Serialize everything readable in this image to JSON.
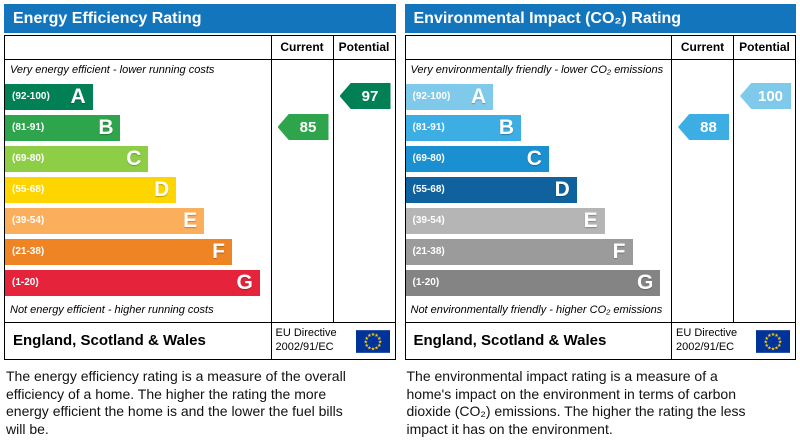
{
  "panels": [
    {
      "title": "Energy Efficiency Rating",
      "header_color": "#1375bc",
      "columns": {
        "current": "Current",
        "potential": "Potential"
      },
      "top_note": "Very energy efficient - lower running costs",
      "bottom_note": "Not energy efficient - higher running costs",
      "bands": [
        {
          "range": "(92-100)",
          "letter": "A",
          "color": "#008054"
        },
        {
          "range": "(81-91)",
          "letter": "B",
          "color": "#2ea44d"
        },
        {
          "range": "(69-80)",
          "letter": "C",
          "color": "#8dce46"
        },
        {
          "range": "(55-68)",
          "letter": "D",
          "color": "#ffd500"
        },
        {
          "range": "(39-54)",
          "letter": "E",
          "color": "#fbaf5d"
        },
        {
          "range": "(21-38)",
          "letter": "F",
          "color": "#ee8424"
        },
        {
          "range": "(1-20)",
          "letter": "G",
          "color": "#e5233b"
        }
      ],
      "current": {
        "value": "85",
        "band_index": 1,
        "color": "#2ea44d"
      },
      "potential": {
        "value": "97",
        "band_index": 0,
        "color": "#008054"
      },
      "footer": {
        "region": "England, Scotland & Wales",
        "directive_line1": "EU Directive",
        "directive_line2": "2002/91/EC"
      },
      "description": "The energy efficiency rating is a measure of the overall efficiency of a home. The higher the rating the more energy efficient the home is and the lower the fuel bills will be."
    },
    {
      "title": "Environmental Impact (CO₂) Rating",
      "header_color": "#1375bc",
      "columns": {
        "current": "Current",
        "potential": "Potential"
      },
      "top_note": "Very environmentally friendly - lower CO₂ emissions",
      "bottom_note": "Not environmentally friendly - higher CO₂ emissions",
      "bands": [
        {
          "range": "(92-100)",
          "letter": "A",
          "color": "#7fc9ea"
        },
        {
          "range": "(81-91)",
          "letter": "B",
          "color": "#3caee4"
        },
        {
          "range": "(69-80)",
          "letter": "C",
          "color": "#1a90d0"
        },
        {
          "range": "(55-68)",
          "letter": "D",
          "color": "#10629f"
        },
        {
          "range": "(39-54)",
          "letter": "E",
          "color": "#b5b5b5"
        },
        {
          "range": "(21-38)",
          "letter": "F",
          "color": "#9b9b9b"
        },
        {
          "range": "(1-20)",
          "letter": "G",
          "color": "#848484"
        }
      ],
      "current": {
        "value": "88",
        "band_index": 1,
        "color": "#3caee4"
      },
      "potential": {
        "value": "100",
        "band_index": 0,
        "color": "#7fc9ea"
      },
      "footer": {
        "region": "England, Scotland & Wales",
        "directive_line1": "EU Directive",
        "directive_line2": "2002/91/EC"
      },
      "description": "The environmental impact rating is a measure of a home's impact on the environment in terms of carbon dioxide (CO₂) emissions. The higher the rating the less impact it has on the environment."
    }
  ],
  "flag_colors": {
    "background": "#003399",
    "stars": "#ffcc00"
  },
  "chart_data": [
    {
      "type": "bar",
      "title": "Energy Efficiency Rating",
      "categories": [
        "A (92-100)",
        "B (81-91)",
        "C (69-80)",
        "D (55-68)",
        "E (39-54)",
        "F (21-38)",
        "G (1-20)"
      ],
      "series": [
        {
          "name": "Current",
          "value": 85,
          "band": "B"
        },
        {
          "name": "Potential",
          "value": 97,
          "band": "A"
        }
      ],
      "xlabel": "",
      "ylabel": "",
      "ylim": [
        1,
        100
      ],
      "annotations": [
        "Very energy efficient - lower running costs",
        "Not energy efficient - higher running costs",
        "England, Scotland & Wales",
        "EU Directive 2002/91/EC"
      ]
    },
    {
      "type": "bar",
      "title": "Environmental Impact (CO₂) Rating",
      "categories": [
        "A (92-100)",
        "B (81-91)",
        "C (69-80)",
        "D (55-68)",
        "E (39-54)",
        "F (21-38)",
        "G (1-20)"
      ],
      "series": [
        {
          "name": "Current",
          "value": 88,
          "band": "B"
        },
        {
          "name": "Potential",
          "value": 100,
          "band": "A"
        }
      ],
      "xlabel": "",
      "ylabel": "",
      "ylim": [
        1,
        100
      ],
      "annotations": [
        "Very environmentally friendly - lower CO₂ emissions",
        "Not environmentally friendly - higher CO₂ emissions",
        "England, Scotland & Wales",
        "EU Directive 2002/91/EC"
      ]
    }
  ]
}
